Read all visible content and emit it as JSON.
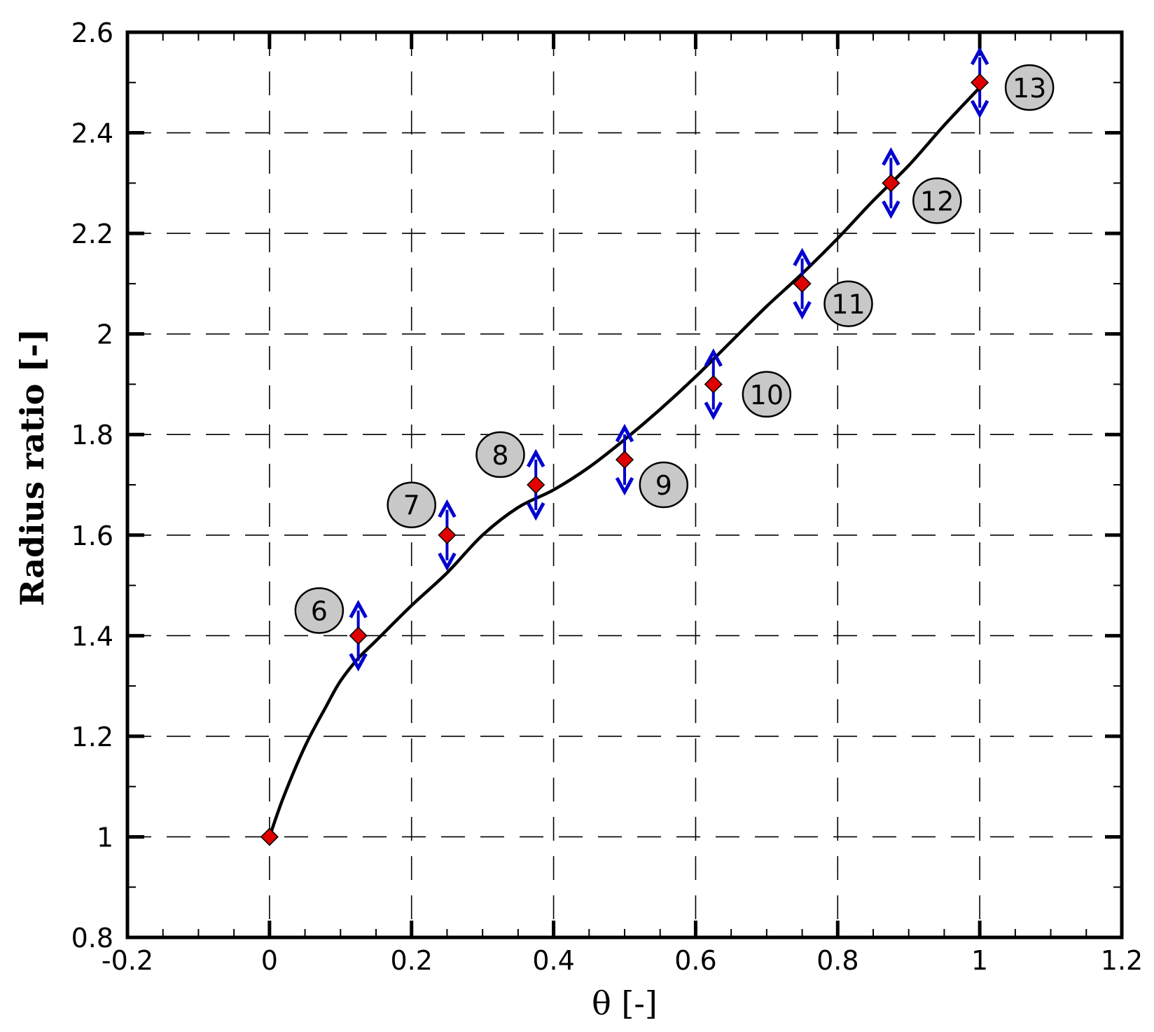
{
  "chart_data": {
    "type": "scatter",
    "title": "",
    "xlabel": "θ  [-]",
    "ylabel": "Radius ratio [-]",
    "xlim": [
      -0.2,
      1.2
    ],
    "ylim": [
      0.8,
      2.6
    ],
    "xticks": [
      "-0.2",
      "0",
      "0.2",
      "0.4",
      "0.6",
      "0.8",
      "1",
      "1.2"
    ],
    "yticks": [
      "0.8",
      "1",
      "1.2",
      "1.4",
      "1.6",
      "1.8",
      "2",
      "2.2",
      "2.4",
      "2.6"
    ],
    "grid": true,
    "legend": "none",
    "colors": {
      "marker_fill": "#e00000",
      "marker_edge": "#000000",
      "arrow": "#0000d0",
      "curve": "#000000",
      "label_fill": "#c8c8c8"
    },
    "points": [
      {
        "x": 0,
        "y": 1.0
      },
      {
        "x": 0.125,
        "y": 1.4
      },
      {
        "x": 0.25,
        "y": 1.6
      },
      {
        "x": 0.375,
        "y": 1.7
      },
      {
        "x": 0.5,
        "y": 1.75
      },
      {
        "x": 0.625,
        "y": 1.9
      },
      {
        "x": 0.75,
        "y": 2.1
      },
      {
        "x": 0.875,
        "y": 2.3
      },
      {
        "x": 1.0,
        "y": 2.5
      }
    ],
    "curve": {
      "x": [
        0,
        0.02,
        0.05,
        0.08,
        0.1,
        0.125,
        0.15,
        0.2,
        0.25,
        0.3,
        0.35,
        0.4,
        0.45,
        0.5,
        0.55,
        0.6,
        0.65,
        0.7,
        0.75,
        0.8,
        0.85,
        0.9,
        0.95,
        1.0
      ],
      "y": [
        1.0,
        1.08,
        1.18,
        1.26,
        1.31,
        1.355,
        1.39,
        1.46,
        1.525,
        1.6,
        1.655,
        1.69,
        1.735,
        1.79,
        1.85,
        1.915,
        1.985,
        2.055,
        2.12,
        2.19,
        2.265,
        2.335,
        2.415,
        2.49
      ]
    },
    "annotations": [
      {
        "text": "6",
        "x": 0.07,
        "y": 1.45
      },
      {
        "text": "7",
        "x": 0.0,
        "y": 0,
        "hide": true
      },
      {
        "text": "7",
        "x": 0.2,
        "y": 1.66
      },
      {
        "text": "8",
        "x": 0.325,
        "y": 1.76
      },
      {
        "text": "9",
        "x": 0.555,
        "y": 1.7
      },
      {
        "text": "10",
        "x": 0.7,
        "y": 1.88
      },
      {
        "text": "11",
        "x": 0.815,
        "y": 2.06
      },
      {
        "text": "12",
        "x": 0.94,
        "y": 2.265
      },
      {
        "text": "13",
        "x": 1.07,
        "y": 2.49
      }
    ]
  }
}
